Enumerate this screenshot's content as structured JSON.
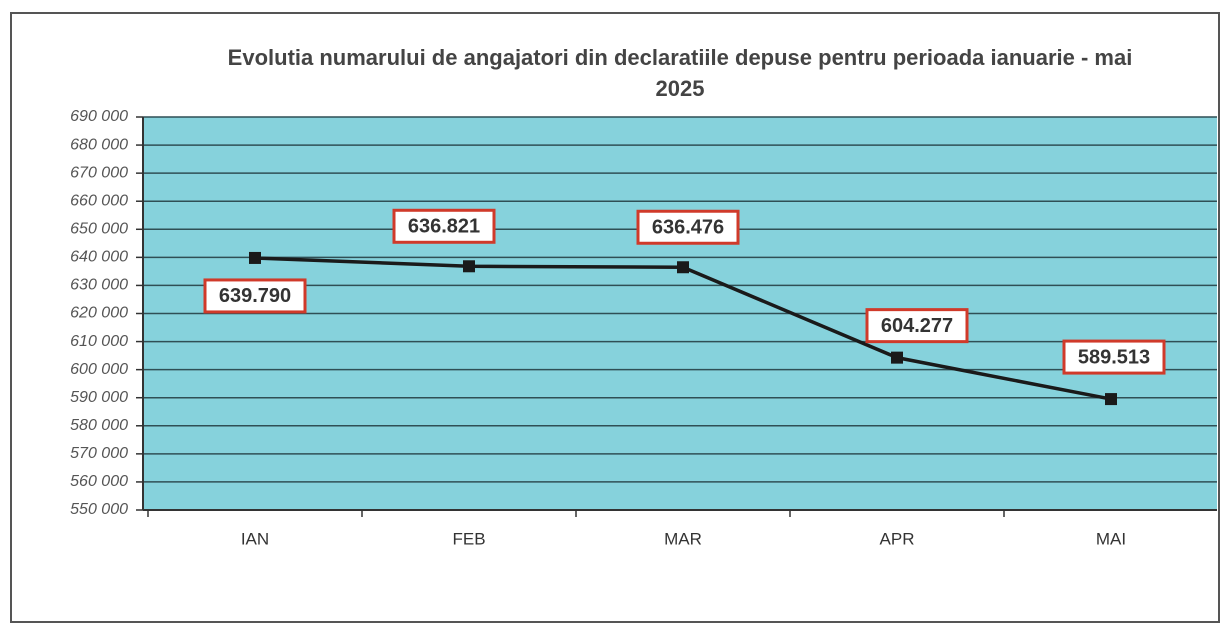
{
  "chart_data": {
    "type": "line",
    "title": "Evolutia numarului de angajatori din declaratiile depuse pentru perioada ianuarie - mai 2025",
    "categories": [
      "IAN",
      "FEB",
      "MAR",
      "APR",
      "MAI"
    ],
    "values": [
      639790,
      636821,
      636476,
      604277,
      589513
    ],
    "value_labels": [
      "639.790",
      "636.821",
      "636.476",
      "604.277",
      "589.513"
    ],
    "color": "#1a1a1a",
    "ylim": [
      550000,
      690000
    ],
    "yticks": [
      {
        "value": 550000,
        "label": "550 000"
      },
      {
        "value": 560000,
        "label": "560 000"
      },
      {
        "value": 570000,
        "label": "570 000"
      },
      {
        "value": 580000,
        "label": "580 000"
      },
      {
        "value": 590000,
        "label": "590 000"
      },
      {
        "value": 600000,
        "label": "600 000"
      },
      {
        "value": 610000,
        "label": "610 000"
      },
      {
        "value": 620000,
        "label": "620 000"
      },
      {
        "value": 630000,
        "label": "630 000"
      },
      {
        "value": 640000,
        "label": "640 000"
      },
      {
        "value": 650000,
        "label": "650 000"
      },
      {
        "value": 660000,
        "label": "660 000"
      },
      {
        "value": 670000,
        "label": "670 000"
      },
      {
        "value": 680000,
        "label": "680 000"
      },
      {
        "value": 690000,
        "label": "690 000"
      }
    ],
    "grid": true
  }
}
